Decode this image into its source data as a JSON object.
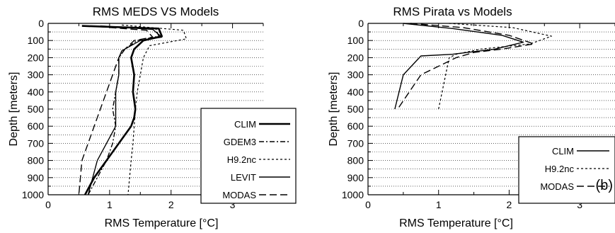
{
  "colors": {
    "line": "#000000",
    "grid": "#000000",
    "background": "#ffffff"
  },
  "chart_data": [
    {
      "type": "line",
      "title": "RMS MEDS VS Models",
      "xlabel": "RMS Temperature [°C]",
      "ylabel": "Depth [meters]",
      "xlim": [
        0,
        3.5
      ],
      "ylim": [
        1000,
        0
      ],
      "y_inverted": true,
      "x_ticks": [
        "0",
        "1",
        "2",
        "3"
      ],
      "y_ticks": [
        "0",
        "100",
        "200",
        "300",
        "400",
        "500",
        "600",
        "700",
        "800",
        "900",
        "1000"
      ],
      "grid": "horizontal dotted",
      "legend_position": "right-middle",
      "panel_tag": "",
      "series": [
        {
          "name": "CLIM",
          "style": "solid-thick",
          "x": [
            0.55,
            1.8,
            1.85,
            1.55,
            1.4,
            1.35,
            1.4,
            1.38,
            1.4,
            1.42,
            1.4,
            1.35,
            1.15,
            0.95,
            0.75,
            0.6
          ],
          "y": [
            15,
            30,
            75,
            100,
            150,
            200,
            300,
            400,
            450,
            500,
            550,
            600,
            700,
            800,
            900,
            1000
          ]
        },
        {
          "name": "GDEM3",
          "style": "dashdot",
          "x": [
            0.6,
            1.75,
            1.8,
            1.45,
            1.25,
            1.15,
            1.15,
            1.1,
            1.05,
            1.1,
            1.05,
            0.95,
            0.8,
            0.65
          ],
          "y": [
            15,
            30,
            75,
            100,
            150,
            200,
            300,
            400,
            500,
            600,
            700,
            800,
            900,
            1000
          ]
        },
        {
          "name": "H9.2nc",
          "style": "dotted",
          "x": [
            1.2,
            2.2,
            2.25,
            1.65,
            1.55,
            1.5,
            1.45,
            1.42,
            1.4,
            1.38,
            1.35,
            1.3
          ],
          "y": [
            10,
            40,
            90,
            130,
            200,
            300,
            400,
            500,
            600,
            700,
            800,
            1000
          ]
        },
        {
          "name": "LEVIT",
          "style": "solid",
          "x": [
            0.85,
            1.7,
            1.85,
            1.5,
            1.2,
            1.15,
            1.15,
            1.1,
            1.1,
            1.1,
            0.95,
            0.8,
            0.65
          ],
          "y": [
            15,
            35,
            80,
            100,
            160,
            200,
            300,
            400,
            500,
            600,
            700,
            800,
            1000
          ]
        },
        {
          "name": "MODAS",
          "style": "longdash",
          "x": [
            0.65,
            1.6,
            1.7,
            1.4,
            1.25,
            1.15,
            1.05,
            0.95,
            0.85,
            0.75,
            0.65,
            0.55,
            0.5
          ],
          "y": [
            15,
            40,
            80,
            100,
            150,
            200,
            300,
            400,
            500,
            600,
            700,
            800,
            1000
          ]
        }
      ]
    },
    {
      "type": "line",
      "title": "RMS Pirata vs Models",
      "xlabel": "RMS Temperature [°C]",
      "ylabel": "Depth [meters]",
      "xlim": [
        0,
        3.5
      ],
      "ylim": [
        1000,
        0
      ],
      "y_inverted": true,
      "x_ticks": [
        "0",
        "1",
        "2",
        "3"
      ],
      "y_ticks": [
        "0",
        "100",
        "200",
        "300",
        "400",
        "500",
        "600",
        "700",
        "800",
        "900",
        "1000"
      ],
      "grid": "horizontal dotted",
      "legend_position": "right-lower",
      "panel_tag": "(b)",
      "series": [
        {
          "name": "CLIM",
          "style": "solid",
          "x": [
            0.5,
            1.2,
            1.9,
            2.2,
            1.8,
            1.2,
            0.75,
            0.5,
            0.38
          ],
          "y": [
            0,
            30,
            70,
            110,
            150,
            180,
            190,
            300,
            500
          ]
        },
        {
          "name": "H9.2nc",
          "style": "dotted",
          "x": [
            1.15,
            2.05,
            2.6,
            2.3,
            1.6,
            1.25,
            1.15,
            1.1,
            1.0
          ],
          "y": [
            0,
            25,
            75,
            120,
            150,
            180,
            200,
            300,
            500
          ]
        },
        {
          "name": "MODAS",
          "style": "longdash",
          "x": [
            0.6,
            1.35,
            2.0,
            2.35,
            1.9,
            1.5,
            1.25,
            1.0,
            0.75,
            0.42
          ],
          "y": [
            0,
            25,
            70,
            120,
            150,
            170,
            200,
            250,
            300,
            500
          ]
        }
      ]
    }
  ]
}
